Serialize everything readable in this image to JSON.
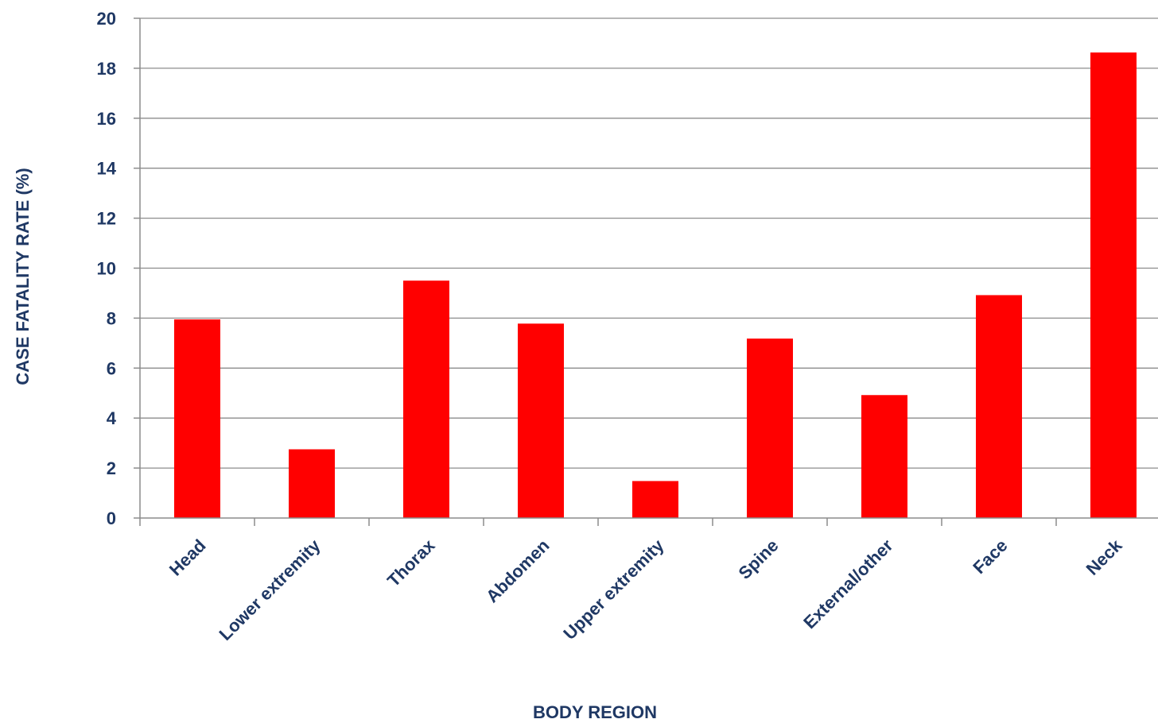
{
  "chart_data": {
    "type": "bar",
    "categories": [
      "Head",
      "Lower extremity",
      "Thorax",
      "Abdomen",
      "Upper extremity",
      "Spine",
      "External/other",
      "Face",
      "Neck"
    ],
    "values": [
      7.95,
      2.75,
      9.5,
      7.78,
      1.48,
      7.18,
      4.92,
      8.92,
      18.63
    ],
    "xlabel": "BODY REGION",
    "ylabel": "CASE FATALITY RATE (%)",
    "ylim": [
      0,
      20
    ],
    "yticks": [
      "0",
      "2",
      "4",
      "6",
      "8",
      "10",
      "12",
      "14",
      "16",
      "18",
      "20"
    ],
    "grid": true,
    "legend": "none",
    "colors": {
      "bar": "#ff0000",
      "text": "#1f3864",
      "grid": "#8c8c8c"
    }
  }
}
